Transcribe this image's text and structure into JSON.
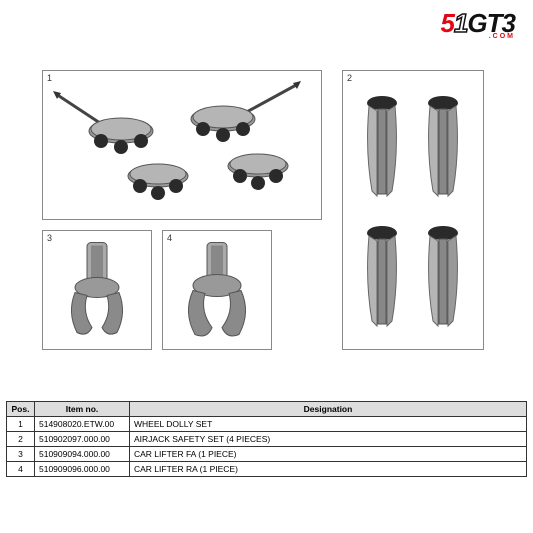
{
  "logo": {
    "text": "51GT3",
    "sub": ".COM",
    "s_color": "#e30613",
    "one_color": "#ffffff",
    "one_stroke": "#111111",
    "rest_color": "#111111"
  },
  "boxes": [
    {
      "label": "1"
    },
    {
      "label": "2"
    },
    {
      "label": "3"
    },
    {
      "label": "4"
    }
  ],
  "table": {
    "headers": {
      "pos": "Pos.",
      "item": "Item no.",
      "desig": "Designation"
    },
    "rows": [
      {
        "pos": "1",
        "item": "514908020.ETW.00",
        "desig": "WHEEL DOLLY SET"
      },
      {
        "pos": "2",
        "item": "510902097.000.00",
        "desig": "AIRJACK SAFETY SET (4 PIECES)"
      },
      {
        "pos": "3",
        "item": "510909094.000.00",
        "desig": "CAR LIFTER FA (1 PIECE)"
      },
      {
        "pos": "4",
        "item": "510909096.000.00",
        "desig": "CAR LIFTER RA (1 PIECE)"
      }
    ]
  },
  "colors": {
    "part_fill": "#8a8a8a",
    "part_dark": "#555555",
    "part_light": "#b5b5b5",
    "tire": "#2a2a2a"
  }
}
